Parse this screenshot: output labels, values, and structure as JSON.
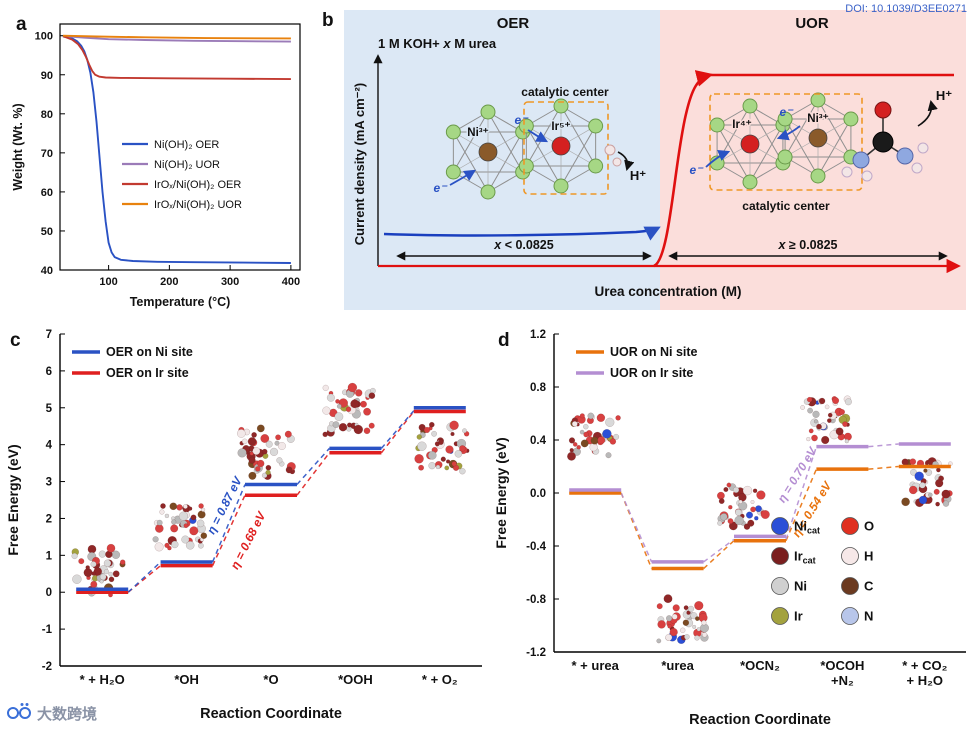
{
  "page": {
    "doi": "DOI: 10.1039/D3EE0271",
    "watermark": "大数跨境",
    "background": "#ffffff"
  },
  "panels": {
    "a": {
      "label": "a"
    },
    "b": {
      "label": "b",
      "left_title": "OER",
      "right_title": "UOR",
      "electrolyte_parts": [
        "1 M KOH+ ",
        "x",
        " M urea"
      ],
      "ylabel": "Current density (mA cm⁻²)",
      "xlabel": "Urea concentration (M)",
      "left_condition_parts": [
        "x",
        " < 0.0825"
      ],
      "right_condition_parts": [
        "x",
        " ≥ 0.0825"
      ],
      "catalytic_center_label": "catalytic center",
      "left_center_atoms": [
        "Ni³⁺",
        "Ir⁵⁺"
      ],
      "right_center_atoms": [
        "Ir⁴⁺",
        "Ni³⁺"
      ],
      "electron_label": "e⁻",
      "proton_label": "H⁺",
      "colors": {
        "left_bg": "#dce8f5",
        "right_bg": "#fbdedb",
        "blue_curve": "#1a3fbf",
        "red_curve": "#e01010",
        "octa_atom": "#a6d785",
        "octa_atom_stroke": "#6a9a4a",
        "ni_center": "#8a5a2a",
        "ir_center": "#d42020",
        "dashed_box": "#ef9726",
        "urea_c": "#1a1a1a",
        "urea_n": "#8fa8e0",
        "urea_o": "#d42020",
        "urea_h": "#f3e6e6"
      }
    },
    "c": {
      "label": "c"
    },
    "d": {
      "label": "d"
    }
  },
  "chart_data": [
    {
      "id": "a",
      "type": "line",
      "panel_label": "a",
      "xlabel": "Temperature (°C)",
      "ylabel": "Weight (Wt. %)",
      "xlim": [
        20,
        415
      ],
      "ylim": [
        40,
        103
      ],
      "xticks": [
        100,
        200,
        300,
        400
      ],
      "yticks": [
        40,
        50,
        60,
        70,
        80,
        90,
        100
      ],
      "series": [
        {
          "name": "Ni(OH)₂ OER",
          "color": "#2a52c4",
          "points": [
            [
              25,
              99.8
            ],
            [
              40,
              99.3
            ],
            [
              48,
              98.6
            ],
            [
              55,
              97.4
            ],
            [
              60,
              96
            ],
            [
              65,
              93.8
            ],
            [
              70,
              90.5
            ],
            [
              75,
              85.5
            ],
            [
              80,
              78
            ],
            [
              85,
              69
            ],
            [
              90,
              60
            ],
            [
              95,
              52.5
            ],
            [
              100,
              47
            ],
            [
              105,
              44.5
            ],
            [
              110,
              43.3
            ],
            [
              120,
              42.6
            ],
            [
              140,
              42.3
            ],
            [
              180,
              42.1
            ],
            [
              240,
              42
            ],
            [
              320,
              41.9
            ],
            [
              400,
              41.8
            ]
          ]
        },
        {
          "name": "Ni(OH)₂ UOR",
          "color": "#9b7bb8",
          "points": [
            [
              25,
              99.9
            ],
            [
              60,
              99.5
            ],
            [
              100,
              99.1
            ],
            [
              160,
              98.9
            ],
            [
              240,
              98.7
            ],
            [
              320,
              98.6
            ],
            [
              400,
              98.5
            ]
          ]
        },
        {
          "name": "IrOₓ/Ni(OH)₂ OER",
          "color": "#c23a30",
          "points": [
            [
              25,
              99.9
            ],
            [
              40,
              99
            ],
            [
              50,
              97.8
            ],
            [
              57,
              96.3
            ],
            [
              63,
              94.5
            ],
            [
              68,
              92.6
            ],
            [
              73,
              91
            ],
            [
              78,
              90
            ],
            [
              85,
              89.5
            ],
            [
              95,
              89.3
            ],
            [
              120,
              89.2
            ],
            [
              200,
              89.1
            ],
            [
              300,
              89
            ],
            [
              400,
              88.9
            ]
          ]
        },
        {
          "name": "IrOₓ/Ni(OH)₂ UOR",
          "color": "#e8820e",
          "points": [
            [
              25,
              100
            ],
            [
              80,
              99.8
            ],
            [
              160,
              99.6
            ],
            [
              260,
              99.4
            ],
            [
              400,
              99.3
            ]
          ]
        }
      ]
    },
    {
      "id": "c",
      "type": "energy-level",
      "panel_label": "c",
      "xlabel": "Reaction Coordinate",
      "ylabel": "Free Energy (eV)",
      "ylim": [
        -2,
        7
      ],
      "ytick_step": 1,
      "ytick_decimals": 0,
      "categories": [
        [
          "* + H₂O"
        ],
        [
          "*OH"
        ],
        [
          "*O"
        ],
        [
          "*OOH"
        ],
        [
          "* + O₂"
        ]
      ],
      "series": [
        {
          "name": "OER on Ni site",
          "color": "#2a52c4",
          "values": [
            0,
            0.82,
            2.92,
            3.9,
            4.92
          ]
        },
        {
          "name": "OER on Ir site",
          "color": "#df1f1f",
          "values": [
            0,
            0.72,
            2.63,
            3.78,
            4.9
          ]
        }
      ],
      "annotations": [
        {
          "text": "η = 0.87 eV",
          "color": "#2a52c4"
        },
        {
          "text": "η = 0.68 eV",
          "color": "#df1f1f"
        }
      ]
    },
    {
      "id": "d",
      "type": "energy-level",
      "panel_label": "d",
      "xlabel": "Reaction Coordinate",
      "ylabel": "Free Energy (eV)",
      "ylim": [
        -1.2,
        1.2
      ],
      "ytick_step": 0.4,
      "ytick_decimals": 1,
      "categories": [
        [
          "* + urea"
        ],
        [
          "*urea"
        ],
        [
          "*OCN₂"
        ],
        [
          "*OCOH",
          "+N₂"
        ],
        [
          "* + CO₂",
          "+ H₂O"
        ]
      ],
      "series": [
        {
          "name": "UOR on Ni site",
          "color": "#e8720c",
          "values": [
            0,
            -0.57,
            -0.36,
            0.18,
            0.2
          ]
        },
        {
          "name": "UOR on Ir site",
          "color": "#b48ed2",
          "values": [
            0,
            -0.52,
            -0.35,
            0.35,
            0.37
          ]
        }
      ],
      "annotations": [
        {
          "text": "η = 0.70 eV",
          "color": "#b48ed2"
        },
        {
          "text": "η = 0.54 eV",
          "color": "#e8720c"
        }
      ],
      "atom_legend": {
        "col1": [
          {
            "main": "Ni",
            "sub": "cat",
            "color": "#2b4fd7"
          },
          {
            "main": "Ir",
            "sub": "cat",
            "color": "#7a1f1f"
          },
          {
            "main": "Ni",
            "sub": "",
            "color": "#d0d0d0"
          },
          {
            "main": "Ir",
            "sub": "",
            "color": "#a3a23e"
          }
        ],
        "col2": [
          {
            "main": "O",
            "sub": "",
            "color": "#e03020"
          },
          {
            "main": "H",
            "sub": "",
            "color": "#f6e8e8"
          },
          {
            "main": "C",
            "sub": "",
            "color": "#6b3a20"
          },
          {
            "main": "N",
            "sub": "",
            "color": "#b8c6ea"
          }
        ]
      }
    }
  ]
}
